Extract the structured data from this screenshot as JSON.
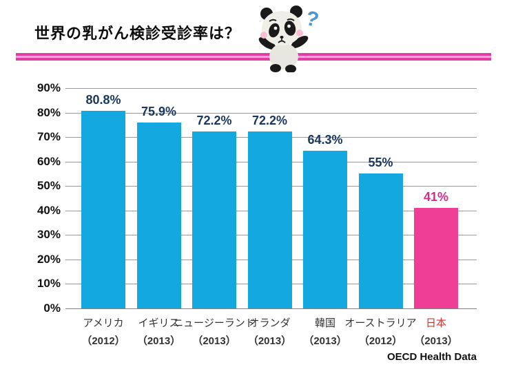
{
  "slide": {
    "title": "世界の乳がん検診受診率は？",
    "source": "OECD Health Data"
  },
  "panda": {
    "question_mark": "?"
  },
  "colors": {
    "bar": "#14a8e0",
    "bar_highlight": "#ee3e96",
    "value_label": "#17375e",
    "value_label_highlight": "#d62e87",
    "category_label": "#333333",
    "category_label_highlight": "#cc3333",
    "gridline": "#999999",
    "axis_label": "#111111",
    "divider": "#e23da4",
    "question_mark_blue": "#4d96d4"
  },
  "chart_data": {
    "type": "bar",
    "title": "世界の乳がん検診受診率は？",
    "categories": [
      "アメリカ",
      "イギリス",
      "ニュージーランド",
      "オランダ",
      "韓国",
      "オーストラリア",
      "日本"
    ],
    "years": [
      "（2012）",
      "（2013）",
      "（2013）",
      "（2013）",
      "（2013）",
      "（2012）",
      "（2013）"
    ],
    "values": [
      80.8,
      75.9,
      72.2,
      72.2,
      64.3,
      55,
      41
    ],
    "value_labels": [
      "80.8%",
      "75.9%",
      "72.2%",
      "72.2%",
      "64.3%",
      "55%",
      "41%"
    ],
    "highlight_index": 6,
    "y_ticks": [
      "90%",
      "80%",
      "70%",
      "60%",
      "50%",
      "40%",
      "30%",
      "20%",
      "10%",
      "0%"
    ],
    "ylim": [
      0,
      90
    ],
    "grid": true,
    "legend": "none",
    "source": "OECD Health Data"
  }
}
